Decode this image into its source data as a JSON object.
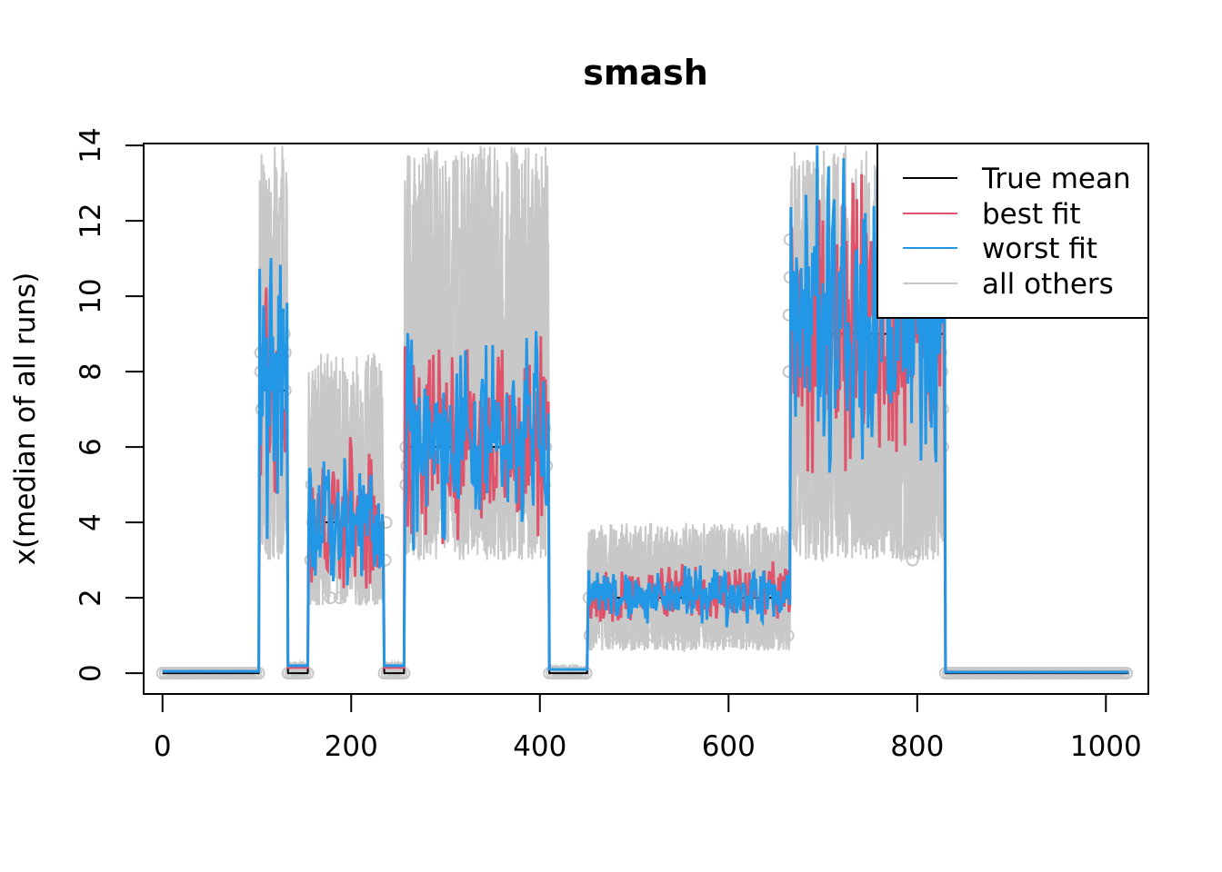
{
  "chart_data": {
    "type": "line",
    "title": "smash",
    "xlabel": "",
    "ylabel": "x(median of all runs)",
    "xlim": [
      -20,
      1045
    ],
    "ylim": [
      -0.55,
      14.05
    ],
    "x_ticks": [
      0,
      200,
      400,
      600,
      800,
      1000
    ],
    "y_ticks": [
      0,
      2,
      4,
      6,
      8,
      10,
      12,
      14
    ],
    "grid": false,
    "legend_position": "top-right",
    "colors": {
      "true_mean": "#000000",
      "best_fit": "#DF536B",
      "worst_fit": "#2297E6",
      "all_others": "#C8C8C8",
      "observed_points": "#C8C8C8"
    },
    "legend": [
      "True mean",
      "best fit",
      "worst fit",
      "all others"
    ],
    "true_mean_segments": [
      {
        "x": [
          0,
          102
        ],
        "y": 0
      },
      {
        "x": [
          103,
          132
        ],
        "y": 7.5
      },
      {
        "x": [
          133,
          154
        ],
        "y": 0
      },
      {
        "x": [
          155,
          234
        ],
        "y": 4
      },
      {
        "x": [
          235,
          256
        ],
        "y": 0
      },
      {
        "x": [
          257,
          409
        ],
        "y": 6
      },
      {
        "x": [
          410,
          450
        ],
        "y": 0
      },
      {
        "x": [
          451,
          665
        ],
        "y": 2
      },
      {
        "x": [
          666,
          829
        ],
        "y": 9
      },
      {
        "x": [
          830,
          1024
        ],
        "y": 0
      }
    ],
    "series": [
      {
        "name": "best fit",
        "segment_levels": [
          {
            "x": [
              0,
              102
            ],
            "y": 0.05
          },
          {
            "x": [
              103,
              132
            ],
            "y": 7.5,
            "spread": 3.0
          },
          {
            "x": [
              133,
              154
            ],
            "y": 0.15
          },
          {
            "x": [
              155,
              234
            ],
            "y": 4.0,
            "spread": 1.4
          },
          {
            "x": [
              235,
              256
            ],
            "y": 0.15
          },
          {
            "x": [
              257,
              409
            ],
            "y": 6.0,
            "spread": 2.0
          },
          {
            "x": [
              410,
              450
            ],
            "y": 0.1
          },
          {
            "x": [
              451,
              665
            ],
            "y": 2.0,
            "spread": 0.6
          },
          {
            "x": [
              666,
              829
            ],
            "y": 9.0,
            "spread": 3.2
          },
          {
            "x": [
              830,
              1024
            ],
            "y": 0.03
          }
        ]
      },
      {
        "name": "worst fit",
        "segment_levels": [
          {
            "x": [
              0,
              102
            ],
            "y": 0.05
          },
          {
            "x": [
              103,
              132
            ],
            "y": 7.5,
            "spread": 3.0
          },
          {
            "x": [
              133,
              154
            ],
            "y": 0.2
          },
          {
            "x": [
              155,
              234
            ],
            "y": 4.0,
            "spread": 1.4
          },
          {
            "x": [
              235,
              256
            ],
            "y": 0.2
          },
          {
            "x": [
              257,
              409
            ],
            "y": 6.0,
            "spread": 2.1
          },
          {
            "x": [
              410,
              450
            ],
            "y": 0.1
          },
          {
            "x": [
              451,
              665
            ],
            "y": 2.0,
            "spread": 0.6
          },
          {
            "x": [
              666,
              829
            ],
            "y": 9.0,
            "spread": 3.2
          },
          {
            "x": [
              830,
              1024
            ],
            "y": 0.03
          }
        ]
      }
    ],
    "all_others_envelope": [
      {
        "x": [
          0,
          102
        ],
        "low": 0,
        "high": 0.1
      },
      {
        "x": [
          103,
          132
        ],
        "low": 3,
        "high": 14
      },
      {
        "x": [
          133,
          154
        ],
        "low": 0,
        "high": 0.3
      },
      {
        "x": [
          155,
          234
        ],
        "low": 1.8,
        "high": 8.5
      },
      {
        "x": [
          235,
          256
        ],
        "low": 0,
        "high": 0.3
      },
      {
        "x": [
          257,
          409
        ],
        "low": 3,
        "high": 14
      },
      {
        "x": [
          410,
          450
        ],
        "low": 0,
        "high": 0.2
      },
      {
        "x": [
          451,
          665
        ],
        "low": 0.6,
        "high": 4.0
      },
      {
        "x": [
          666,
          829
        ],
        "low": 3,
        "high": 14
      },
      {
        "x": [
          830,
          1024
        ],
        "low": 0,
        "high": 0.1
      }
    ],
    "observed_points": [
      [
        104,
        8.5
      ],
      [
        104,
        8.0
      ],
      [
        105,
        7.0
      ],
      [
        129,
        9.0
      ],
      [
        130,
        8.5
      ],
      [
        130,
        7.5
      ],
      [
        158,
        5.0
      ],
      [
        159,
        4.0
      ],
      [
        157,
        3.0
      ],
      [
        178,
        2.0
      ],
      [
        188,
        2.0
      ],
      [
        237,
        4.0
      ],
      [
        236,
        3.0
      ],
      [
        258,
        6.0
      ],
      [
        259,
        5.5
      ],
      [
        258,
        5.0
      ],
      [
        405,
        6.5
      ],
      [
        406,
        6.0
      ],
      [
        407,
        5.5
      ],
      [
        405,
        5.0
      ],
      [
        452,
        2.0
      ],
      [
        453,
        1.0
      ],
      [
        475,
        1.0
      ],
      [
        490,
        1.0
      ],
      [
        505,
        1.0
      ],
      [
        520,
        1.0
      ],
      [
        540,
        1.0
      ],
      [
        560,
        1.0
      ],
      [
        580,
        1.0
      ],
      [
        600,
        1.0
      ],
      [
        620,
        1.0
      ],
      [
        640,
        1.0
      ],
      [
        660,
        2.0
      ],
      [
        663,
        1.0
      ],
      [
        665,
        11.5
      ],
      [
        665,
        10.5
      ],
      [
        664,
        9.5
      ],
      [
        664,
        8.0
      ],
      [
        795,
        3.0
      ],
      [
        800,
        4.0
      ],
      [
        825,
        8.5
      ],
      [
        826,
        8.0
      ],
      [
        827,
        7.0
      ],
      [
        827,
        6.0
      ]
    ]
  }
}
